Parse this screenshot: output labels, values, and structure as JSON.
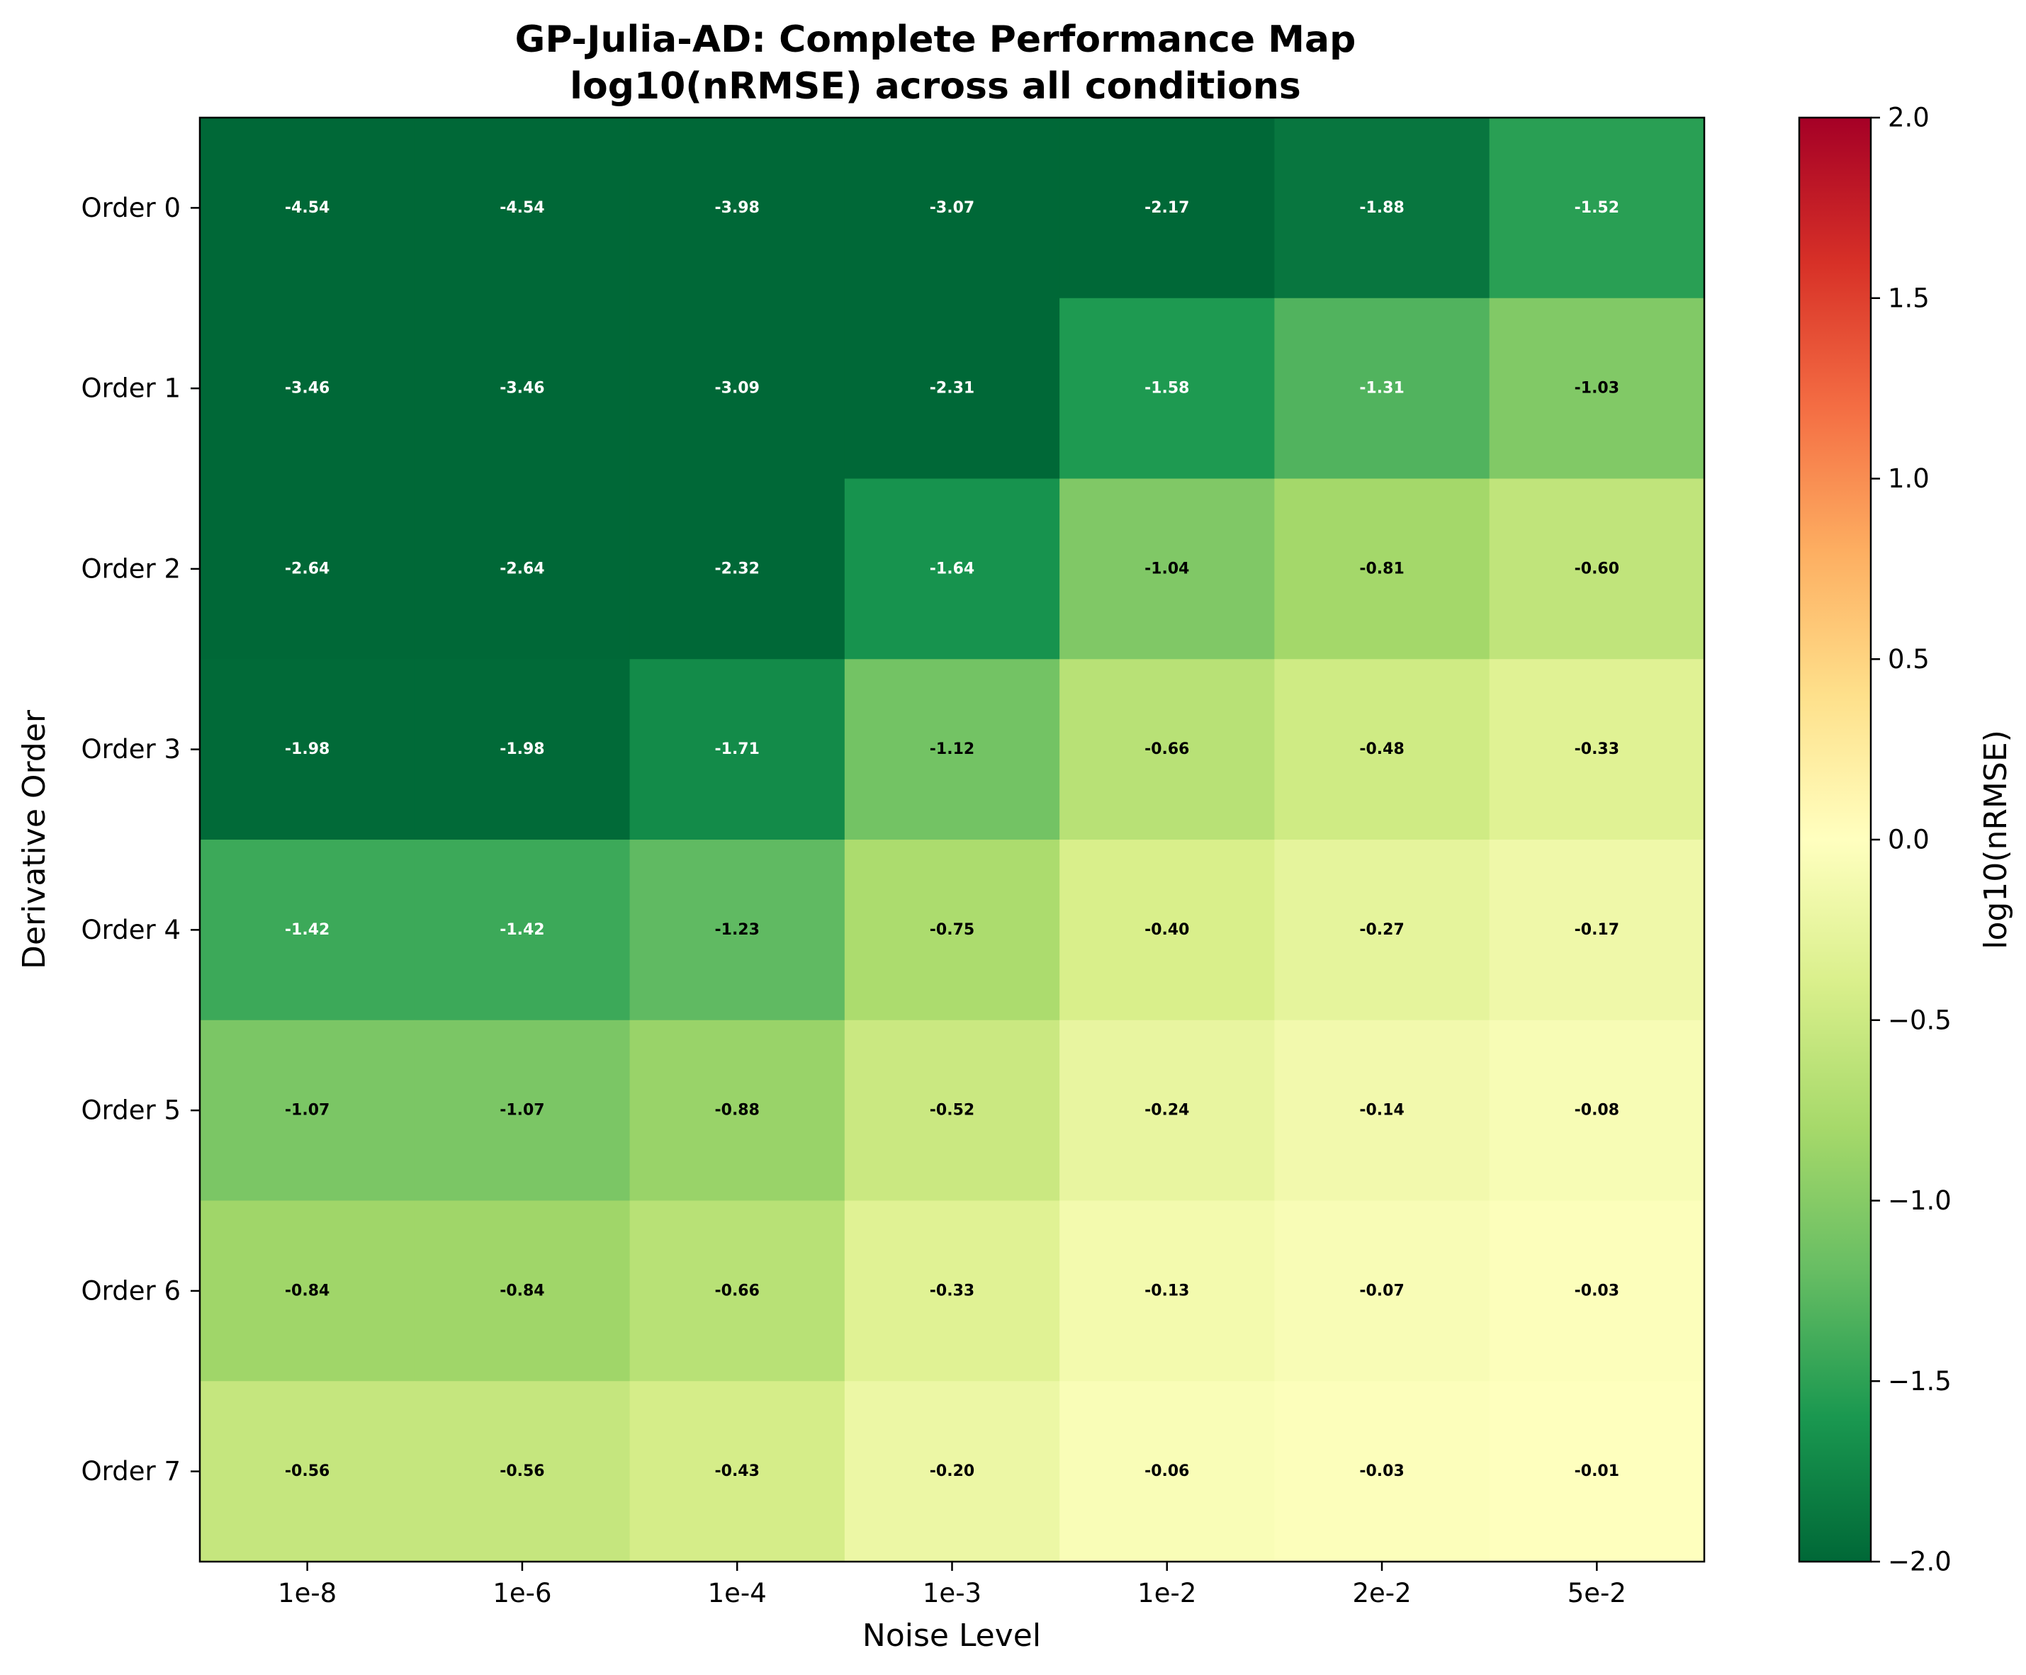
{
  "chart_data": {
    "type": "heatmap",
    "title": "GP-Julia-AD: Complete Performance Map",
    "subtitle": "log10(nRMSE) across all conditions",
    "xlabel": "Noise Level",
    "ylabel": "Derivative Order",
    "x_categories": [
      "1e-8",
      "1e-6",
      "1e-4",
      "1e-3",
      "1e-2",
      "2e-2",
      "5e-2"
    ],
    "y_categories": [
      "Order 0",
      "Order 1",
      "Order 2",
      "Order 3",
      "Order 4",
      "Order 5",
      "Order 6",
      "Order 7"
    ],
    "values": [
      [
        -4.54,
        -4.54,
        -3.98,
        -3.07,
        -2.17,
        -1.88,
        -1.52
      ],
      [
        -3.46,
        -3.46,
        -3.09,
        -2.31,
        -1.58,
        -1.31,
        -1.03
      ],
      [
        -2.64,
        -2.64,
        -2.32,
        -1.64,
        -1.04,
        -0.81,
        -0.6
      ],
      [
        -1.98,
        -1.98,
        -1.71,
        -1.12,
        -0.66,
        -0.48,
        -0.33
      ],
      [
        -1.42,
        -1.42,
        -1.23,
        -0.75,
        -0.4,
        -0.27,
        -0.17
      ],
      [
        -1.07,
        -1.07,
        -0.88,
        -0.52,
        -0.24,
        -0.14,
        -0.08
      ],
      [
        -0.84,
        -0.84,
        -0.66,
        -0.33,
        -0.13,
        -0.07,
        -0.03
      ],
      [
        -0.56,
        -0.56,
        -0.43,
        -0.2,
        -0.06,
        -0.03,
        -0.01
      ]
    ],
    "colorbar": {
      "label": "log10(nRMSE)",
      "vmin": -2.0,
      "vmax": 2.0,
      "ticks": [
        2.0,
        1.5,
        1.0,
        0.5,
        0.0,
        -0.5,
        -1.0,
        -1.5,
        -2.0
      ],
      "tick_labels": [
        "2.0",
        "1.5",
        "1.0",
        "0.5",
        "0.0",
        "−0.5",
        "−1.0",
        "−1.5",
        "−2.0"
      ],
      "colormap": "RdYlGn_r",
      "colormap_stops": [
        "#006837",
        "#1a9850",
        "#66bd63",
        "#a6d96a",
        "#d9ef8b",
        "#ffffbf",
        "#fee08b",
        "#fdae61",
        "#f46d43",
        "#d73027",
        "#a50026"
      ]
    },
    "label_colors": {
      "dark": "#000000",
      "light": "#ffffff"
    }
  }
}
